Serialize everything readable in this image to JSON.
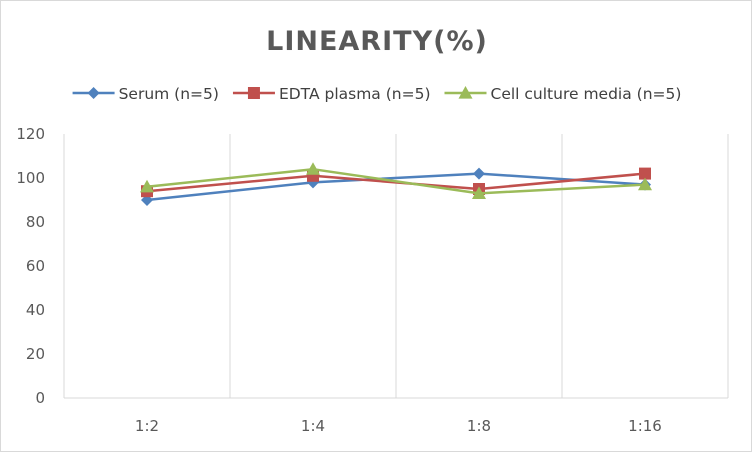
{
  "chart_data": {
    "type": "line",
    "title": "LINEARITY(%)",
    "categories": [
      "1:2",
      "1:4",
      "1:8",
      "1:16"
    ],
    "ylim": [
      0,
      120
    ],
    "yticks": [
      0,
      20,
      40,
      60,
      80,
      100,
      120
    ],
    "grid": "vertical",
    "legend_position": "top",
    "series": [
      {
        "name": "Serum (n=5)",
        "values": [
          90,
          98,
          102,
          97
        ],
        "color": "#4f81bd",
        "marker": "diamond"
      },
      {
        "name": "EDTA plasma (n=5)",
        "values": [
          94,
          101,
          95,
          102
        ],
        "color": "#c0504d",
        "marker": "square"
      },
      {
        "name": "Cell culture media (n=5)",
        "values": [
          96,
          104,
          93,
          97
        ],
        "color": "#9bbb59",
        "marker": "triangle"
      }
    ]
  }
}
